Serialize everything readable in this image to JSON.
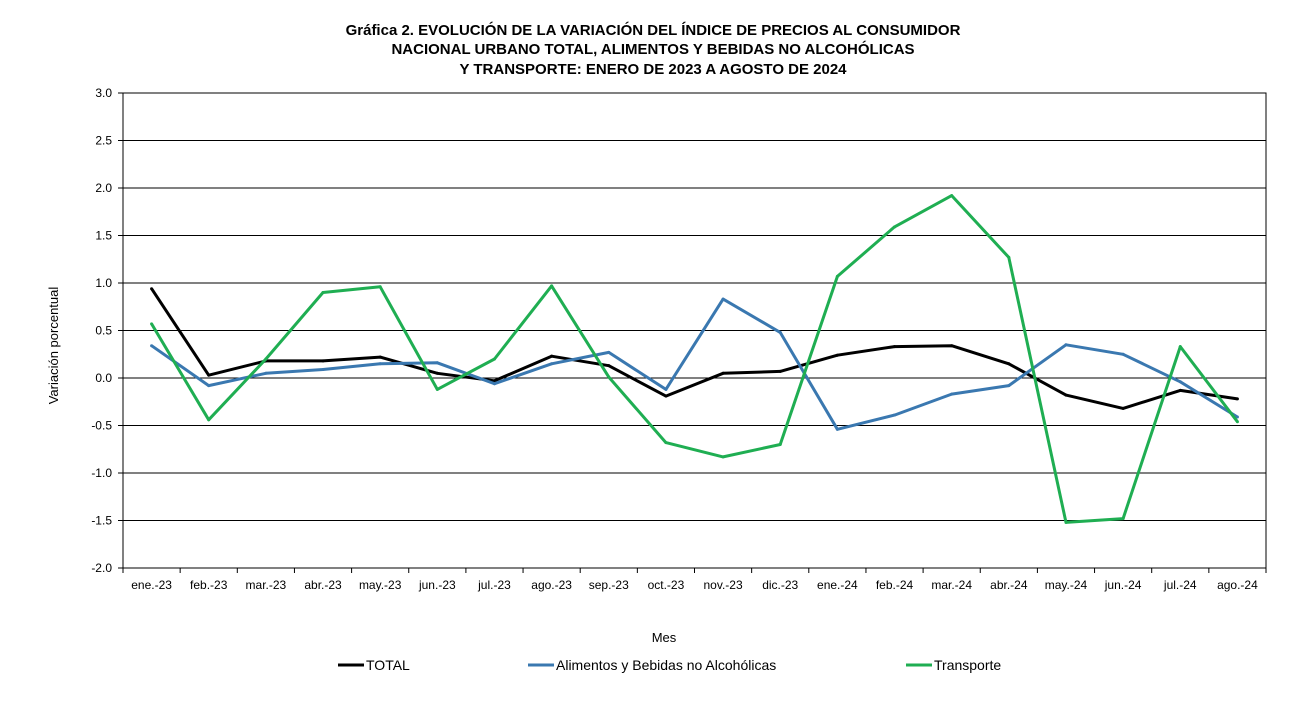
{
  "chart_data": {
    "type": "line",
    "title_lines": [
      "Gráfica 2. EVOLUCIÓN DE LA VARIACIÓN DEL ÍNDICE DE PRECIOS AL CONSUMIDOR",
      "NACIONAL URBANO TOTAL, ALIMENTOS Y BEBIDAS NO ALCOHÓLICAS",
      "Y TRANSPORTE: ENERO DE 2023 A AGOSTO DE 2024"
    ],
    "xlabel": "Mes",
    "ylabel": "Variación porcentual",
    "ylim": [
      -2.0,
      3.0
    ],
    "yticks": [
      "3.0",
      "2.5",
      "2.0",
      "1.5",
      "1.0",
      "0.5",
      "0.0",
      "-0.5",
      "-1.0",
      "-1.5",
      "-2.0"
    ],
    "ytick_values": [
      3.0,
      2.5,
      2.0,
      1.5,
      1.0,
      0.5,
      0.0,
      -0.5,
      -1.0,
      -1.5,
      -2.0
    ],
    "grid": true,
    "legend_position": "bottom",
    "categories": [
      "ene.-23",
      "feb.-23",
      "mar.-23",
      "abr.-23",
      "may.-23",
      "jun.-23",
      "jul.-23",
      "ago.-23",
      "sep.-23",
      "oct.-23",
      "nov.-23",
      "dic.-23",
      "ene.-24",
      "feb.-24",
      "mar.-24",
      "abr.-24",
      "may.-24",
      "jun.-24",
      "jul.-24",
      "ago.-24"
    ],
    "series": [
      {
        "name": "TOTAL",
        "color": "#000000",
        "values": [
          0.94,
          0.03,
          0.18,
          0.18,
          0.22,
          0.05,
          -0.03,
          0.23,
          0.13,
          -0.19,
          0.05,
          0.07,
          0.24,
          0.33,
          0.34,
          0.15,
          -0.18,
          -0.32,
          -0.13,
          -0.22
        ]
      },
      {
        "name": "Alimentos y Bebidas no Alcohólicas",
        "color": "#3a78b0",
        "values": [
          0.34,
          -0.08,
          0.05,
          0.09,
          0.15,
          0.16,
          -0.06,
          0.15,
          0.27,
          -0.12,
          0.83,
          0.48,
          -0.54,
          -0.39,
          -0.17,
          -0.08,
          0.35,
          0.25,
          -0.04,
          -0.41
        ]
      },
      {
        "name": "Transporte",
        "color": "#1fae52",
        "values": [
          0.57,
          -0.44,
          0.2,
          0.9,
          0.96,
          -0.12,
          0.2,
          0.97,
          0.01,
          -0.68,
          -0.83,
          -0.7,
          1.07,
          1.59,
          1.92,
          1.27,
          -1.52,
          -1.48,
          0.33,
          -0.46
        ]
      }
    ]
  }
}
